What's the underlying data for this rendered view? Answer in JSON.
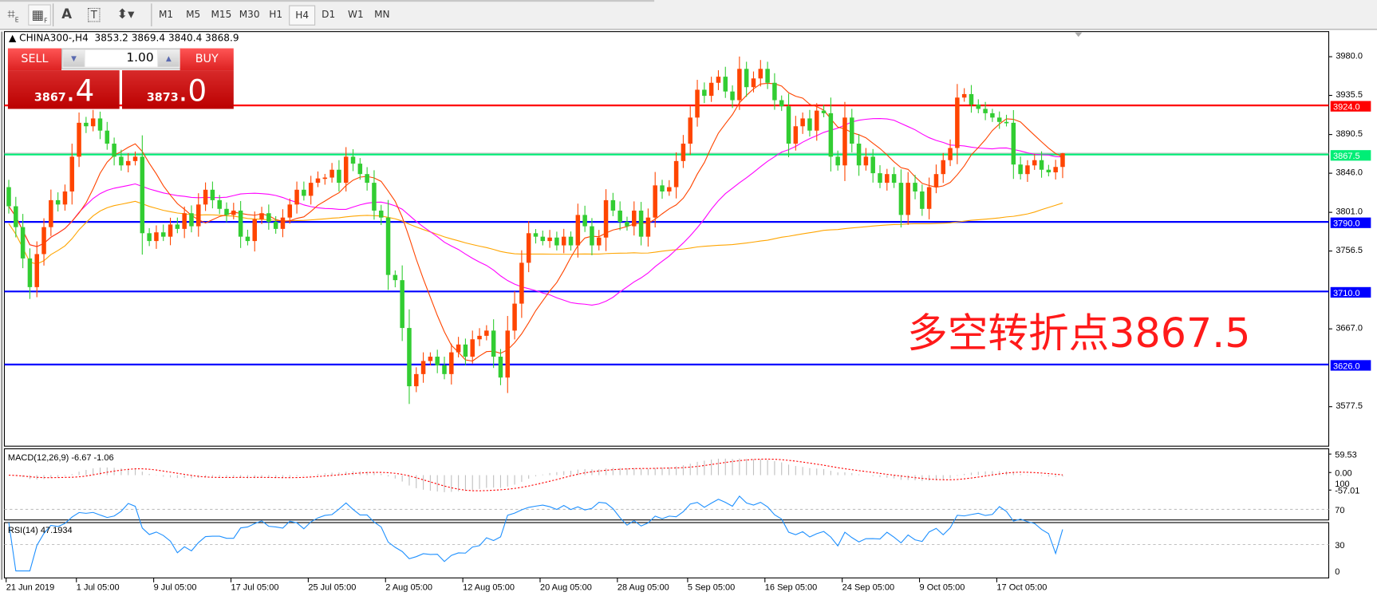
{
  "toolbar": {
    "icons": [
      "chart-properties-e-icon",
      "period-separators-f-icon",
      "text-a-icon",
      "text-label-t-icon",
      "arrows-dropdown-icon"
    ],
    "labels": {
      "text": "A",
      "label": "T",
      "e": "E",
      "f": "F"
    },
    "timeframes": [
      "M1",
      "M5",
      "M15",
      "M30",
      "H1",
      "H4",
      "D1",
      "W1",
      "MN"
    ],
    "active_timeframe": "H4"
  },
  "header": {
    "symbol": "CHINA300-,H4",
    "ohlc": "3853.2 3869.4 3840.4 3868.9"
  },
  "trade": {
    "sell_label": "SELL",
    "buy_label": "BUY",
    "lot": "1.00",
    "sell_main": "3867",
    "sell_frac": ".4",
    "buy_main": "3873",
    "buy_frac": ".0"
  },
  "annotation": "多空转折点3867.5",
  "colors": {
    "bull": "#ff4500",
    "bear": "#32cd32",
    "ma_fast": "#ff4500",
    "ma_mid": "#ff00ff",
    "ma_slow": "#ffa500",
    "resistance": "#ff0000",
    "pivot": "#00ee76",
    "support": "#0000ff",
    "macd_hist": "#c0c0c0",
    "macd_signal": "#ff0000",
    "rsi": "#1e90ff"
  },
  "chart_data": {
    "type": "candlestick",
    "symbol": "CHINA300-",
    "timeframe": "H4",
    "price_ticks": [
      "3980.0",
      "3935.5",
      "3890.5",
      "3846.0",
      "3801.0",
      "3756.5",
      "3667.0",
      "3577.5"
    ],
    "levels": [
      {
        "price": "3924.0",
        "kind": "resistance"
      },
      {
        "price": "3867.5",
        "kind": "pivot"
      },
      {
        "price": "3790.0",
        "kind": "support"
      },
      {
        "price": "3710.0",
        "kind": "support"
      },
      {
        "price": "3626.0",
        "kind": "support"
      }
    ],
    "closes": [
      3808,
      3784,
      3748,
      3715,
      3753,
      3784,
      3815,
      3810,
      3825,
      3865,
      3904,
      3900,
      3909,
      3895,
      3880,
      3865,
      3855,
      3860,
      3865,
      3777,
      3768,
      3778,
      3773,
      3787,
      3782,
      3800,
      3785,
      3810,
      3827,
      3815,
      3805,
      3798,
      3803,
      3773,
      3768,
      3793,
      3800,
      3790,
      3782,
      3795,
      3810,
      3827,
      3820,
      3835,
      3840,
      3841,
      3850,
      3835,
      3865,
      3857,
      3845,
      3835,
      3803,
      3795,
      3729,
      3723,
      3668,
      3601,
      3615,
      3630,
      3635,
      3625,
      3615,
      3640,
      3649,
      3635,
      3655,
      3659,
      3665,
      3635,
      3611,
      3665,
      3696,
      3743,
      3777,
      3773,
      3768,
      3772,
      3763,
      3773,
      3763,
      3798,
      3785,
      3763,
      3772,
      3815,
      3803,
      3790,
      3785,
      3803,
      3773,
      3795,
      3832,
      3825,
      3830,
      3860,
      3880,
      3910,
      3942,
      3935,
      3950,
      3957,
      3940,
      3930,
      3966,
      3945,
      3955,
      3966,
      3950,
      3930,
      3923,
      3880,
      3900,
      3909,
      3895,
      3918,
      3915,
      3865,
      3855,
      3910,
      3880,
      3855,
      3865,
      3846,
      3835,
      3845,
      3835,
      3798,
      3835,
      3825,
      3805,
      3830,
      3845,
      3861,
      3875,
      3933,
      3937,
      3925,
      3920,
      3915,
      3910,
      3905,
      3904,
      3856,
      3845,
      3855,
      3861,
      3850,
      3847,
      3853.2,
      3868.9
    ],
    "last_bar": {
      "open": 3853.2,
      "high": 3869.4,
      "low": 3840.4,
      "close": 3868.9
    },
    "x_labels": [
      {
        "label": "21 Jun 2019",
        "bar": 0
      },
      {
        "label": "1 Jul 05:00",
        "bar": 10
      },
      {
        "label": "9 Jul 05:00",
        "bar": 21
      },
      {
        "label": "17 Jul 05:00",
        "bar": 32
      },
      {
        "label": "25 Jul 05:00",
        "bar": 43
      },
      {
        "label": "2 Aug 05:00",
        "bar": 54
      },
      {
        "label": "12 Aug 05:00",
        "bar": 65
      },
      {
        "label": "20 Aug 05:00",
        "bar": 76
      },
      {
        "label": "28 Aug 05:00",
        "bar": 87
      },
      {
        "label": "5 Sep 05:00",
        "bar": 97
      },
      {
        "label": "16 Sep 05:00",
        "bar": 108
      },
      {
        "label": "24 Sep 05:00",
        "bar": 119
      },
      {
        "label": "9 Oct 05:00",
        "bar": 130
      },
      {
        "label": "17 Oct 05:00",
        "bar": 141
      }
    ],
    "macd": {
      "label": "MACD(12,26,9) -6.67 -1.06",
      "ticks": [
        "59.53",
        "0.00",
        "-57.01"
      ],
      "max": 59.53,
      "min": -57.01
    },
    "rsi": {
      "label": "RSI(14) 47.1934",
      "ticks": [
        "100",
        "70",
        "30",
        "0"
      ],
      "levels": [
        70,
        30
      ]
    }
  }
}
